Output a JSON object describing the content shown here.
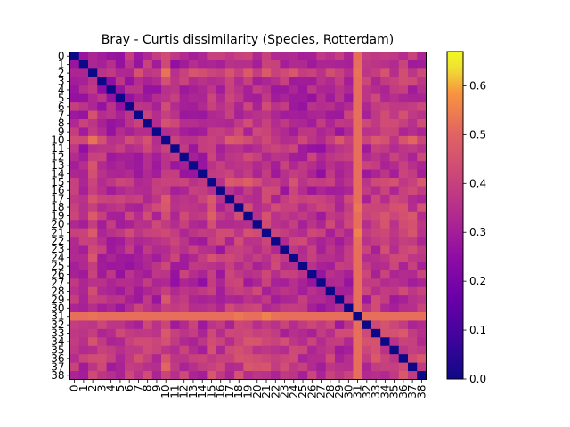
{
  "chart_data": {
    "type": "heatmap",
    "title": "Bray - Curtis dissimilarity (Species, Rotterdam)",
    "xlabel": "",
    "ylabel": "",
    "colormap": "plasma",
    "n": 39,
    "labels": [
      "0",
      "1",
      "2",
      "3",
      "4",
      "5",
      "6",
      "7",
      "8",
      "9",
      "10",
      "11",
      "12",
      "13",
      "14",
      "15",
      "16",
      "17",
      "18",
      "19",
      "20",
      "21",
      "22",
      "23",
      "24",
      "25",
      "26",
      "27",
      "28",
      "29",
      "30",
      "31",
      "32",
      "33",
      "34",
      "35",
      "36",
      "37",
      "38"
    ],
    "diagonal": 0.0,
    "row_mean": [
      0.33,
      0.31,
      0.45,
      0.33,
      0.3,
      0.32,
      0.33,
      0.34,
      0.37,
      0.34,
      0.47,
      0.34,
      0.35,
      0.34,
      0.32,
      0.44,
      0.34,
      0.37,
      0.4,
      0.4,
      0.4,
      0.42,
      0.39,
      0.34,
      0.36,
      0.33,
      0.33,
      0.31,
      0.33,
      0.33,
      0.36,
      0.56,
      0.37,
      0.4,
      0.41,
      0.38,
      0.42,
      0.4,
      0.38
    ],
    "colorbar": {
      "ticks": [
        0.0,
        0.1,
        0.2,
        0.3,
        0.4,
        0.5,
        0.6
      ],
      "tick_labels": [
        "0.0",
        "0.1",
        "0.2",
        "0.3",
        "0.4",
        "0.5",
        "0.6"
      ],
      "vmin": 0.0,
      "vmax": 0.67
    },
    "grid": false,
    "legend": "colorbar-right"
  }
}
